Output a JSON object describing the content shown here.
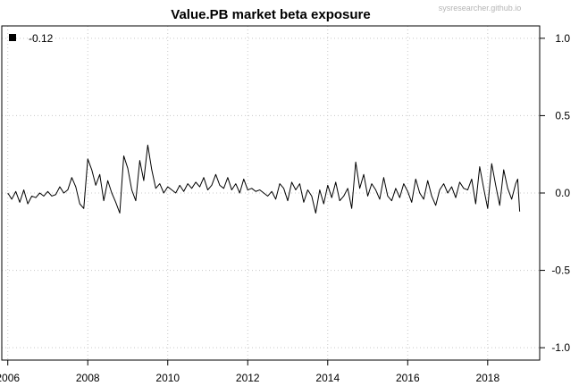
{
  "watermark": "sysresearcher.github.io",
  "chart_data": {
    "type": "line",
    "title": "Value.PB market beta exposure",
    "xlabel": "",
    "ylabel": "",
    "xlim": [
      2005.85,
      2019.3
    ],
    "ylim": [
      -1.08,
      1.08
    ],
    "x_ticks": [
      2006,
      2008,
      2010,
      2012,
      2014,
      2016,
      2018
    ],
    "y_ticks": [
      -1.0,
      -0.5,
      0.0,
      0.5,
      1.0
    ],
    "y_tick_labels": [
      "-1.0",
      "-0.5",
      "0.0",
      "0.5",
      "1.0"
    ],
    "y_axis_side": "right",
    "grid": true,
    "legend": {
      "position": "top-left",
      "entries": [
        {
          "label": "-0.12",
          "color": "#000000"
        }
      ]
    },
    "series": [
      {
        "color": "#000000",
        "x": [
          2006.0,
          2006.1,
          2006.2,
          2006.3,
          2006.4,
          2006.5,
          2006.6,
          2006.7,
          2006.8,
          2006.9,
          2007.0,
          2007.1,
          2007.2,
          2007.3,
          2007.4,
          2007.5,
          2007.6,
          2007.7,
          2007.8,
          2007.9,
          2008.0,
          2008.1,
          2008.2,
          2008.3,
          2008.4,
          2008.5,
          2008.6,
          2008.7,
          2008.8,
          2008.9,
          2009.0,
          2009.1,
          2009.2,
          2009.3,
          2009.4,
          2009.5,
          2009.6,
          2009.7,
          2009.8,
          2009.9,
          2010.0,
          2010.1,
          2010.2,
          2010.3,
          2010.4,
          2010.5,
          2010.6,
          2010.7,
          2010.8,
          2010.9,
          2011.0,
          2011.1,
          2011.2,
          2011.3,
          2011.4,
          2011.5,
          2011.6,
          2011.7,
          2011.8,
          2011.9,
          2012.0,
          2012.1,
          2012.2,
          2012.3,
          2012.4,
          2012.5,
          2012.6,
          2012.7,
          2012.8,
          2012.9,
          2013.0,
          2013.1,
          2013.2,
          2013.3,
          2013.4,
          2013.5,
          2013.6,
          2013.7,
          2013.8,
          2013.9,
          2014.0,
          2014.1,
          2014.2,
          2014.3,
          2014.4,
          2014.5,
          2014.6,
          2014.7,
          2014.8,
          2014.9,
          2015.0,
          2015.1,
          2015.2,
          2015.3,
          2015.4,
          2015.5,
          2015.6,
          2015.7,
          2015.8,
          2015.9,
          2016.0,
          2016.1,
          2016.2,
          2016.3,
          2016.4,
          2016.5,
          2016.6,
          2016.7,
          2016.8,
          2016.9,
          2017.0,
          2017.1,
          2017.2,
          2017.3,
          2017.4,
          2017.5,
          2017.6,
          2017.7,
          2017.8,
          2017.9,
          2018.0,
          2018.1,
          2018.2,
          2018.3,
          2018.4,
          2018.5,
          2018.6,
          2018.7,
          2018.75,
          2018.8
        ],
        "y": [
          0.0,
          -0.04,
          0.01,
          -0.06,
          0.02,
          -0.07,
          -0.02,
          -0.03,
          0.0,
          -0.02,
          0.01,
          -0.02,
          -0.01,
          0.04,
          0.0,
          0.02,
          0.1,
          0.04,
          -0.07,
          -0.1,
          0.22,
          0.15,
          0.05,
          0.12,
          -0.05,
          0.08,
          0.0,
          -0.06,
          -0.13,
          0.24,
          0.16,
          0.02,
          -0.05,
          0.21,
          0.08,
          0.31,
          0.15,
          0.03,
          0.06,
          0.0,
          0.04,
          0.02,
          0.0,
          0.05,
          0.01,
          0.06,
          0.03,
          0.07,
          0.04,
          0.1,
          0.02,
          0.05,
          0.12,
          0.05,
          0.03,
          0.1,
          0.02,
          0.06,
          0.0,
          0.09,
          0.02,
          0.03,
          0.01,
          0.02,
          0.0,
          -0.02,
          0.01,
          -0.04,
          0.06,
          0.03,
          -0.05,
          0.07,
          0.02,
          0.06,
          -0.06,
          0.02,
          -0.02,
          -0.13,
          0.02,
          -0.07,
          0.05,
          -0.03,
          0.07,
          -0.05,
          -0.02,
          0.03,
          -0.1,
          0.2,
          0.03,
          0.12,
          -0.02,
          0.06,
          0.02,
          -0.04,
          0.1,
          -0.02,
          -0.05,
          0.03,
          -0.03,
          0.06,
          0.01,
          -0.06,
          0.09,
          0.0,
          -0.04,
          0.08,
          -0.02,
          -0.08,
          0.02,
          0.06,
          0.0,
          0.04,
          -0.03,
          0.07,
          0.03,
          0.02,
          0.09,
          -0.07,
          0.17,
          0.03,
          -0.1,
          0.19,
          0.05,
          -0.08,
          0.15,
          0.03,
          -0.04,
          0.06,
          0.09,
          -0.12
        ]
      }
    ]
  }
}
